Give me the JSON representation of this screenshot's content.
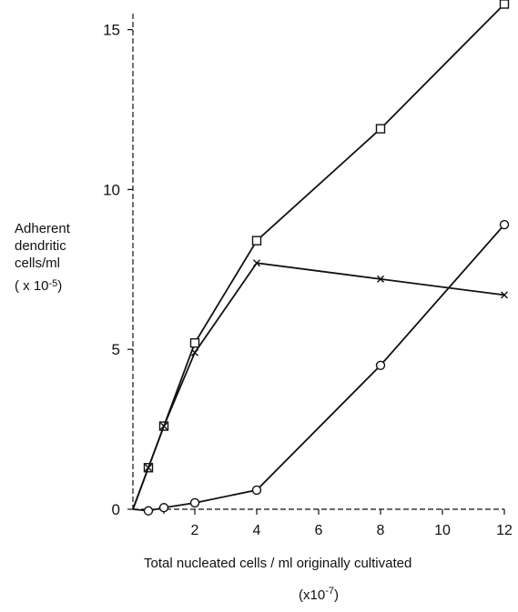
{
  "chart_data": {
    "type": "line",
    "x_ticks": [
      2,
      4,
      6,
      8,
      10,
      12
    ],
    "y_ticks": [
      0,
      5,
      10,
      15
    ],
    "xlim": [
      0,
      12
    ],
    "ylim": [
      0,
      15.5
    ],
    "xlabel": "Total nucleated cells / ml originally cultivated",
    "xlabel_unit_prefix": "(x10",
    "xlabel_unit_exp": "-7",
    "xlabel_unit_suffix": ")",
    "ylabel_lines": [
      "Adherent",
      "dendritic",
      "cells/ml"
    ],
    "ylabel_unit_prefix": "( x 10",
    "ylabel_unit_exp": "-5",
    "ylabel_unit_suffix": ")",
    "x_positions": [
      0,
      0.5,
      1,
      2,
      4,
      8,
      12
    ],
    "series": [
      {
        "marker": "square",
        "points": [
          [
            0,
            0
          ],
          [
            0.5,
            1.3
          ],
          [
            1,
            2.6
          ],
          [
            2,
            5.2
          ],
          [
            4,
            8.4
          ],
          [
            8,
            11.9
          ],
          [
            12,
            15.8
          ]
        ]
      },
      {
        "marker": "x",
        "points": [
          [
            0,
            0
          ],
          [
            0.5,
            1.3
          ],
          [
            1,
            2.6
          ],
          [
            2,
            4.9
          ],
          [
            4,
            7.7
          ],
          [
            8,
            7.2
          ],
          [
            12,
            6.7
          ]
        ]
      },
      {
        "marker": "circle",
        "points": [
          [
            0,
            0
          ],
          [
            0.5,
            -0.05
          ],
          [
            1,
            0.05
          ],
          [
            2,
            0.2
          ],
          [
            4,
            0.6
          ],
          [
            8,
            4.5
          ],
          [
            12,
            8.9
          ]
        ]
      }
    ]
  }
}
